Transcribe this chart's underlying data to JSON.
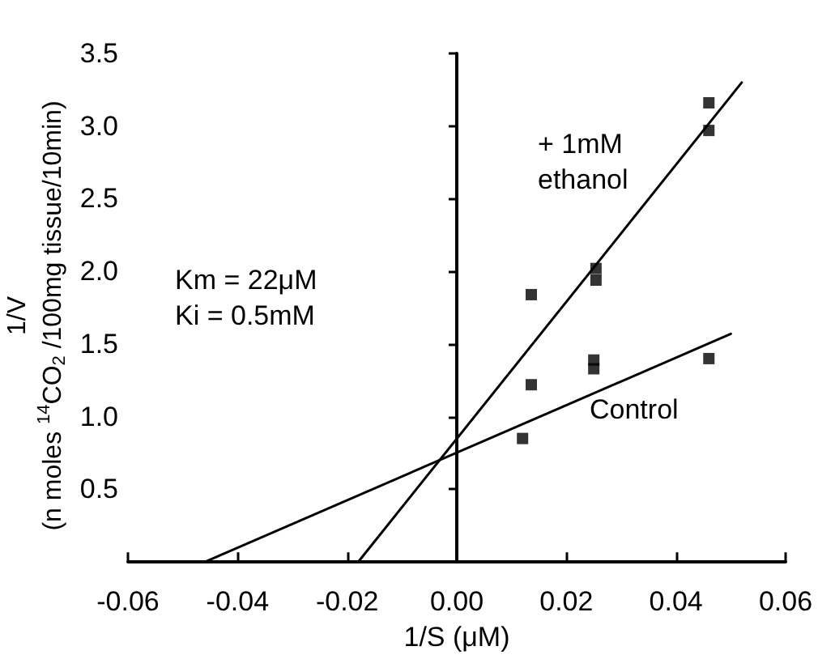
{
  "chart_data": {
    "type": "scatter",
    "xlabel": "1/S (μM)",
    "ylabel": "1/V\n(n moles $^{14}$CO$_{2}$ /100mg tissue/10min)",
    "xlim": [
      -0.06,
      0.06
    ],
    "xticks": [
      {
        "value": -0.06,
        "label": "-0.06"
      },
      {
        "value": -0.04,
        "label": "-0.04"
      },
      {
        "value": -0.02,
        "label": "-0.02"
      },
      {
        "value": 0,
        "label": "0.00"
      },
      {
        "value": 0.02,
        "label": "0.02"
      },
      {
        "value": 0.04,
        "label": "0.04"
      },
      {
        "value": 0.06,
        "label": "0.06"
      }
    ],
    "ylim": [
      0,
      3.5
    ],
    "yticks": [
      {
        "value": 0,
        "label": null
      },
      {
        "value": 0.5,
        "label": "0.5"
      },
      {
        "value": 1,
        "label": "1.0"
      },
      {
        "value": 1.5,
        "label": "1.5"
      },
      {
        "value": 2,
        "label": "2.0"
      },
      {
        "value": 2.5,
        "label": "2.5"
      },
      {
        "value": 3,
        "label": "3.0"
      },
      {
        "value": 3.5,
        "label": "3.5"
      }
    ],
    "marker": "square",
    "series": [
      {
        "color": "#000000",
        "x": [
          0.046,
          0.046,
          0.0254,
          0.0254,
          0.0136,
          0.0136
        ],
        "values": [
          3.16,
          2.97,
          2.02,
          1.94,
          1.84,
          1.22
        ]
      },
      {
        "color": "#000000",
        "x": [
          0.012,
          0.025,
          0.025,
          0.046
        ],
        "values": [
          0.85,
          1.39,
          1.33,
          1.4
        ]
      },
      {
        "type": "line",
        "color": "#000000",
        "marker": "none",
        "x": [
          -0.018,
          0.052
        ],
        "values": [
          0,
          3.3
        ]
      },
      {
        "type": "line",
        "color": "#000000",
        "marker": "none",
        "x": [
          -0.046,
          0.05
        ],
        "values": [
          0,
          1.57
        ]
      }
    ],
    "annotations": [
      "+ 1mM\nethanol",
      "Control",
      "Km = 22μM\nKi = 0.5mM"
    ]
  }
}
